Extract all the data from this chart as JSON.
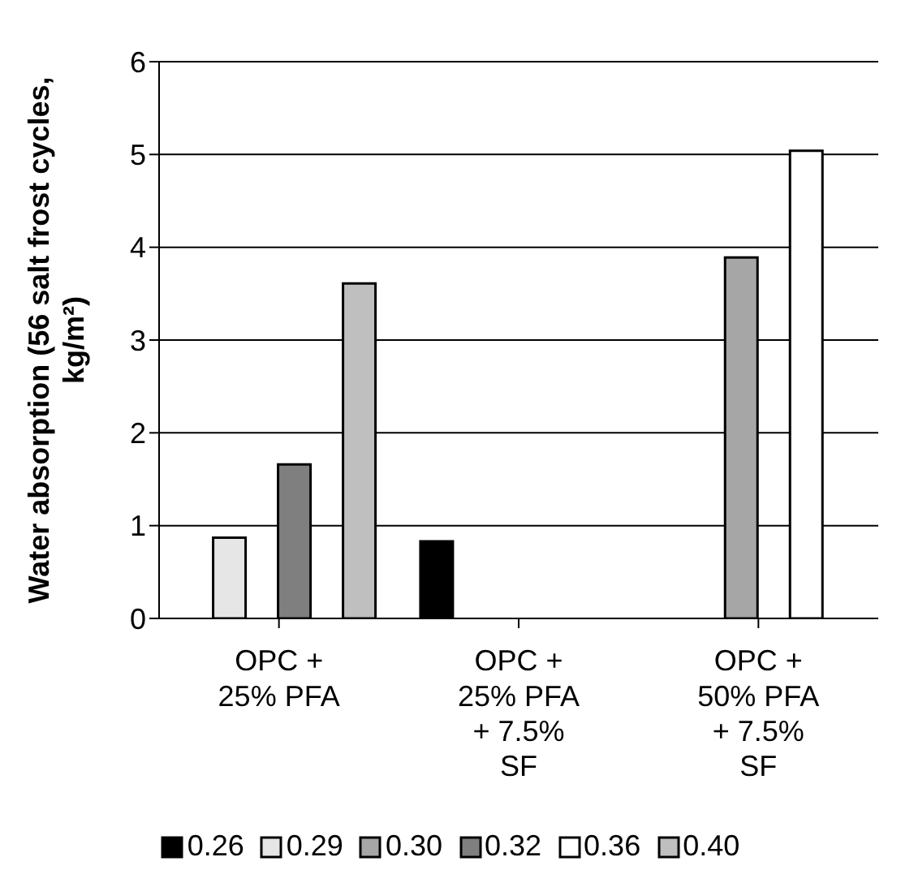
{
  "chart_data": {
    "type": "bar",
    "ylabel": "Water absorption (56 salt frost cycles, kg/m²)",
    "categories": [
      "OPC + 25% PFA",
      "OPC + 25% PFA + 7.5% SF",
      "OPC + 50% PFA + 7.5% SF"
    ],
    "series": [
      {
        "name": "0.26",
        "color": "#000000",
        "values": [
          null,
          0.83,
          null
        ]
      },
      {
        "name": "0.29",
        "color": "#e6e6e6",
        "values": [
          0.87,
          null,
          null
        ]
      },
      {
        "name": "0.30",
        "color": "#a6a6a6",
        "values": [
          null,
          null,
          3.89
        ]
      },
      {
        "name": "0.32",
        "color": "#7f7f7f",
        "values": [
          1.66,
          null,
          null
        ]
      },
      {
        "name": "0.36",
        "color": "#ffffff",
        "values": [
          null,
          null,
          5.04
        ]
      },
      {
        "name": "0.40",
        "color": "#bfbfbf",
        "values": [
          3.61,
          null,
          null
        ]
      }
    ],
    "ylim": [
      0,
      6
    ],
    "yticks": [
      0,
      1,
      2,
      3,
      4,
      5,
      6
    ],
    "grid": "y",
    "legend": "bottom"
  }
}
